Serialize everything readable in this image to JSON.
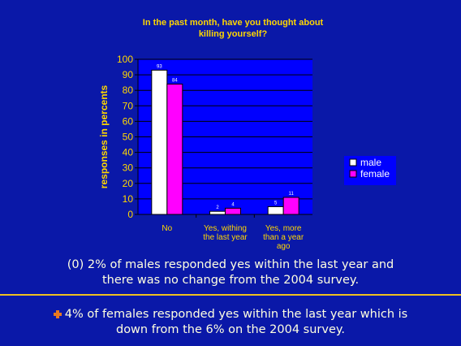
{
  "chart_data": {
    "type": "bar",
    "title_lines": [
      "In the past month, have you thought about",
      "killing yourself?"
    ],
    "ylabel": "responses in percents",
    "ylim": [
      0,
      100
    ],
    "ytick_step": 10,
    "categories": [
      [
        "No"
      ],
      [
        "Yes, withing",
        "the last year"
      ],
      [
        "Yes, more",
        "than a year",
        "ago"
      ]
    ],
    "series": [
      {
        "name": "male",
        "values": [
          93,
          2,
          5
        ],
        "color": "#ffffff"
      },
      {
        "name": "female",
        "values": [
          84,
          4,
          11
        ],
        "color": "#ff00ff"
      }
    ],
    "grid": true,
    "plot_background": "#0000ff",
    "legend_position": "right"
  },
  "captions": {
    "first": [
      "(0)  2% of males responded yes within the last year and",
      "there was no change from the 2004 survey."
    ],
    "second": [
      "4% of females responded yes within the last year which is",
      "down from the 6% on the 2004 survey."
    ]
  },
  "colors": {
    "slide_background": "#0a18a8",
    "caption_text": "#ffffe0",
    "chart_text": "#ffd700",
    "separator": "#f0c020",
    "bullet": "#e87820"
  },
  "icons": {
    "bullet": "plus-bullet-icon"
  }
}
